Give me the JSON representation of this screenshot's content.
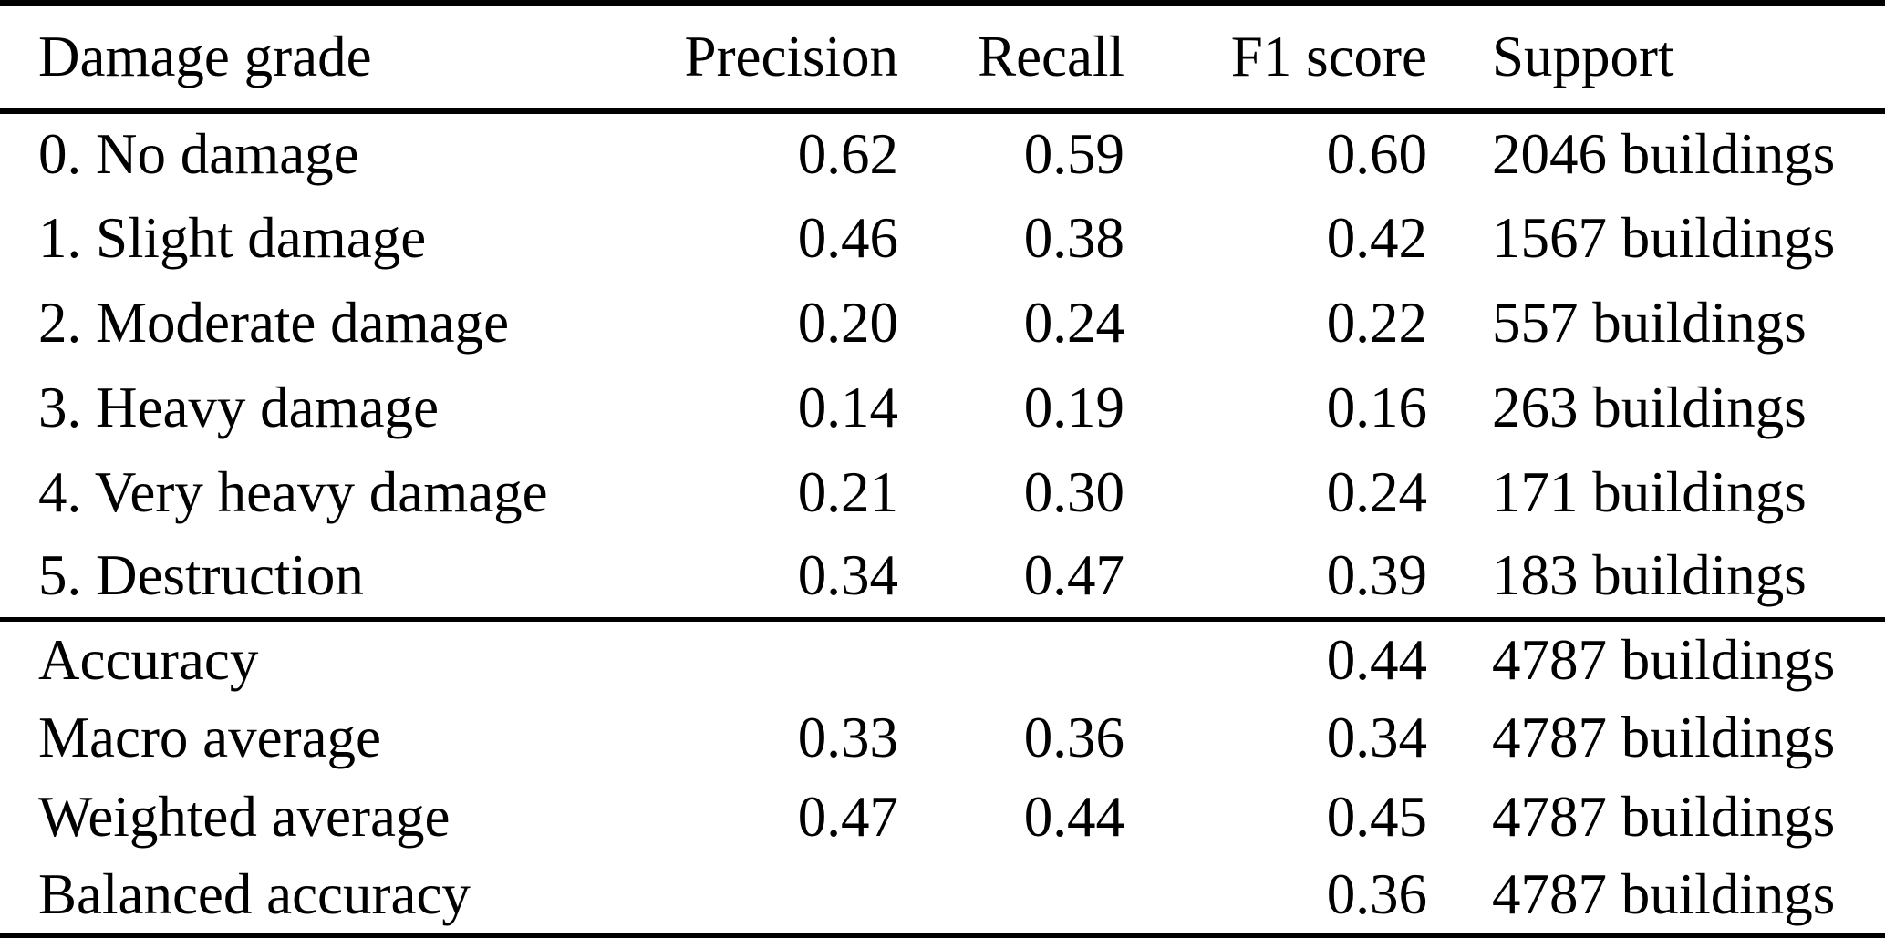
{
  "page": {
    "background_color": "#ffffff",
    "text_color": "#000000"
  },
  "table": {
    "columns": [
      {
        "key": "label",
        "label": "Damage grade"
      },
      {
        "key": "precision",
        "label": "Precision"
      },
      {
        "key": "recall",
        "label": "Recall"
      },
      {
        "key": "f1",
        "label": "F1 score"
      },
      {
        "key": "support",
        "label": "Support"
      }
    ],
    "rows": [
      {
        "label": "0. No damage",
        "precision": "0.62",
        "recall": "0.59",
        "f1": "0.60",
        "support": "2046 buildings"
      },
      {
        "label": "1. Slight damage",
        "precision": "0.46",
        "recall": "0.38",
        "f1": "0.42",
        "support": "1567 buildings"
      },
      {
        "label": "2. Moderate damage",
        "precision": "0.20",
        "recall": "0.24",
        "f1": "0.22",
        "support": "557 buildings"
      },
      {
        "label": "3. Heavy damage",
        "precision": "0.14",
        "recall": "0.19",
        "f1": "0.16",
        "support": "263 buildings"
      },
      {
        "label": "4. Very heavy damage",
        "precision": "0.21",
        "recall": "0.30",
        "f1": "0.24",
        "support": "171 buildings"
      },
      {
        "label": "5. Destruction",
        "precision": "0.34",
        "recall": "0.47",
        "f1": "0.39",
        "support": "183 buildings"
      }
    ],
    "summary_rows": [
      {
        "label": "Accuracy",
        "precision": "",
        "recall": "",
        "f1": "0.44",
        "support": "4787 buildings"
      },
      {
        "label": "Macro average",
        "precision": "0.33",
        "recall": "0.36",
        "f1": "0.34",
        "support": "4787 buildings"
      },
      {
        "label": "Weighted average",
        "precision": "0.47",
        "recall": "0.44",
        "f1": "0.45",
        "support": "4787 buildings"
      },
      {
        "label": "Balanced accuracy",
        "precision": "",
        "recall": "",
        "f1": "0.36",
        "support": "4787 buildings"
      }
    ]
  },
  "chart_data": {
    "type": "table",
    "title": "",
    "columns": [
      "Damage grade",
      "Precision",
      "Recall",
      "F1 score",
      "Support"
    ],
    "cells": [
      [
        "0. No damage",
        0.62,
        0.59,
        0.6,
        "2046 buildings"
      ],
      [
        "1. Slight damage",
        0.46,
        0.38,
        0.42,
        "1567 buildings"
      ],
      [
        "2. Moderate damage",
        0.2,
        0.24,
        0.22,
        "557 buildings"
      ],
      [
        "3. Heavy damage",
        0.14,
        0.19,
        0.16,
        "263 buildings"
      ],
      [
        "4. Very heavy damage",
        0.21,
        0.3,
        0.24,
        "171 buildings"
      ],
      [
        "5. Destruction",
        0.34,
        0.47,
        0.39,
        "183 buildings"
      ],
      [
        "Accuracy",
        null,
        null,
        0.44,
        "4787 buildings"
      ],
      [
        "Macro average",
        0.33,
        0.36,
        0.34,
        "4787 buildings"
      ],
      [
        "Weighted average",
        0.47,
        0.44,
        0.45,
        "4787 buildings"
      ],
      [
        "Balanced accuracy",
        null,
        null,
        0.36,
        "4787 buildings"
      ]
    ]
  }
}
